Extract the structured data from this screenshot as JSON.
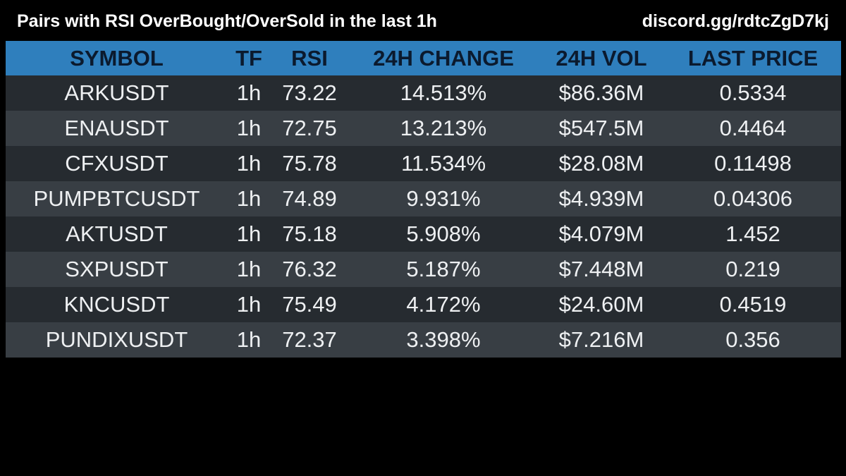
{
  "header": {
    "title": "Pairs with RSI OverBought/OverSold in the last 1h",
    "invite": "discord.gg/rdtcZgD7kj"
  },
  "table": {
    "columns": [
      "SYMBOL",
      "TF",
      "RSI",
      "24H CHANGE",
      "24H VOL",
      "LAST PRICE"
    ],
    "rows": [
      [
        "ARKUSDT",
        "1h",
        "73.22",
        "14.513%",
        "$86.36M",
        "0.5334"
      ],
      [
        "ENAUSDT",
        "1h",
        "72.75",
        "13.213%",
        "$547.5M",
        "0.4464"
      ],
      [
        "CFXUSDT",
        "1h",
        "75.78",
        "11.534%",
        "$28.08M",
        "0.11498"
      ],
      [
        "PUMPBTCUSDT",
        "1h",
        "74.89",
        "9.931%",
        "$4.939M",
        "0.04306"
      ],
      [
        "AKTUSDT",
        "1h",
        "75.18",
        "5.908%",
        "$4.079M",
        "1.452"
      ],
      [
        "SXPUSDT",
        "1h",
        "76.32",
        "5.187%",
        "$7.448M",
        "0.219"
      ],
      [
        "KNCUSDT",
        "1h",
        "75.49",
        "4.172%",
        "$24.60M",
        "0.4519"
      ],
      [
        "PUNDIXUSDT",
        "1h",
        "72.37",
        "3.398%",
        "$7.216M",
        "0.356"
      ]
    ]
  },
  "colors": {
    "background": "#000000",
    "header_row": "#2f7fbd",
    "header_text": "#0b1a2e",
    "row_dark": "#262b30",
    "row_light": "#383e44",
    "text": "#eef0f2"
  }
}
